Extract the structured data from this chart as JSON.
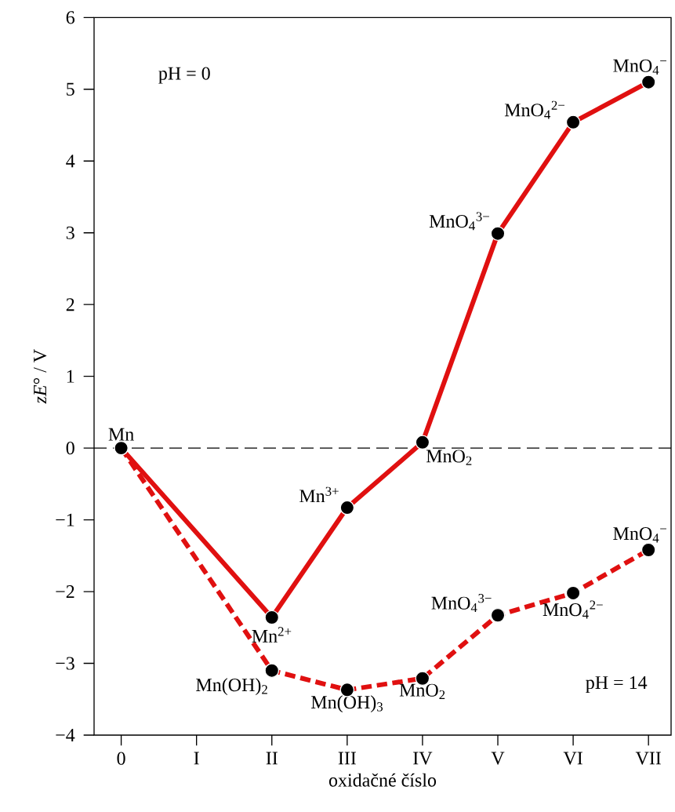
{
  "chart_data": {
    "type": "line",
    "xlabel": "oxidačné číslo",
    "ylabel": "*zE*° / V",
    "categories": [
      "0",
      "I",
      "II",
      "III",
      "IV",
      "V",
      "VI",
      "VII"
    ],
    "ylim": [
      -4,
      6
    ],
    "yticks": [
      {
        "value": -4,
        "label": "−4"
      },
      {
        "value": -3,
        "label": "−3"
      },
      {
        "value": -2,
        "label": "−2"
      },
      {
        "value": -1,
        "label": "−1"
      },
      0,
      1,
      2,
      3,
      4,
      5,
      6
    ],
    "marker": "circle",
    "series": [
      {
        "color": "#e01010",
        "line_style": "solid",
        "values": [
          0,
          null,
          -2.36,
          -0.83,
          0.08,
          2.99,
          4.54,
          5.1
        ]
      },
      {
        "color": "#e01010",
        "line_style": "dashed",
        "values": [
          0,
          null,
          -3.1,
          -3.37,
          -3.21,
          -2.33,
          -2.02,
          -1.42
        ]
      }
    ],
    "ref_lines": [
      {
        "axis": "y",
        "value": 0,
        "color": "#000000",
        "line_style": "dashed"
      }
    ],
    "annotations": [
      {
        "text": "Mn",
        "x": "0",
        "y": 0
      },
      {
        "text": "Mn$^{2+}$",
        "x": "II",
        "y": -2.36
      },
      {
        "text": "Mn$^{3+}$",
        "x": "III",
        "y": -0.83
      },
      {
        "text": "MnO$_{2}$",
        "x": "IV",
        "y": 0.08
      },
      {
        "text": "MnO$_{4}$$^{3−}$",
        "x": "V",
        "y": 2.99
      },
      {
        "text": "MnO$_{4}$$^{2−}$",
        "x": "VI",
        "y": 4.54
      },
      {
        "text": "MnO$_{4}$$^{−}$",
        "x": "VII",
        "y": 5.1
      },
      {
        "text": "Mn(OH)$_{2}$",
        "x": "II",
        "y": -3.1
      },
      {
        "text": "Mn(OH)$_{3}$",
        "x": "III",
        "y": -3.37
      },
      {
        "text": "MnO$_{2}$",
        "x": "IV",
        "y": -3.21
      },
      {
        "text": "MnO$_{4}$$^{3−}$",
        "x": "V",
        "y": -2.33
      },
      {
        "text": "MnO$_{4}$$^{2−}$",
        "x": "VI",
        "y": -2.02
      },
      {
        "text": "MnO$_{4}$$^{−}$",
        "x": "VII",
        "y": -1.42
      },
      "pH = 0",
      "pH = 14"
    ]
  }
}
